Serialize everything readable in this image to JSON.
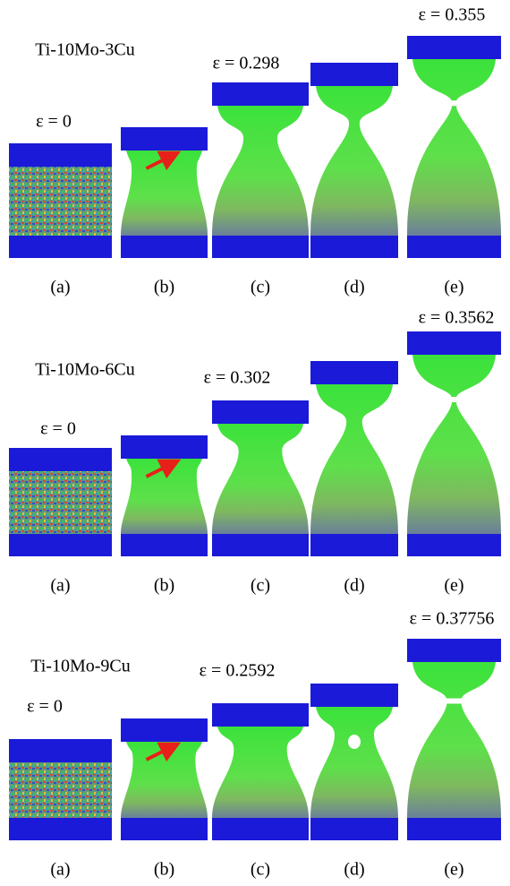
{
  "rows": [
    {
      "alloy": "Ti-10Mo-3Cu",
      "frames": [
        {
          "label": "(a)",
          "strain": "ε = 0"
        },
        {
          "label": "(b)"
        },
        {
          "label": "(c)",
          "strain": "ε = 0.298"
        },
        {
          "label": "(d)"
        },
        {
          "label": "(e)",
          "strain": "ε = 0.355"
        }
      ]
    },
    {
      "alloy": "Ti-10Mo-6Cu",
      "frames": [
        {
          "label": "(a)",
          "strain": "ε = 0"
        },
        {
          "label": "(b)"
        },
        {
          "label": "(c)",
          "strain": "ε = 0.302"
        },
        {
          "label": "(d)"
        },
        {
          "label": "(e)",
          "strain": "ε = 0.3562"
        }
      ]
    },
    {
      "alloy": "Ti-10Mo-9Cu",
      "frames": [
        {
          "label": "(a)",
          "strain": "ε = 0"
        },
        {
          "label": "(b)"
        },
        {
          "label": "(c)",
          "strain": "ε = 0.2592"
        },
        {
          "label": "(d)"
        },
        {
          "label": "(e)",
          "strain": "ε = 0.37756"
        }
      ]
    }
  ]
}
